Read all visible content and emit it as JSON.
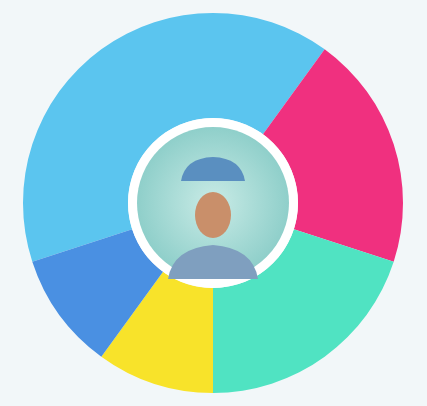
{
  "chart_data": {
    "type": "donut",
    "values": [
      40,
      20,
      20,
      10,
      10
    ],
    "colors": [
      "#5bc5ef",
      "#f0307f",
      "#50e3c2",
      "#f8e32a",
      "#4a90e2"
    ]
  }
}
